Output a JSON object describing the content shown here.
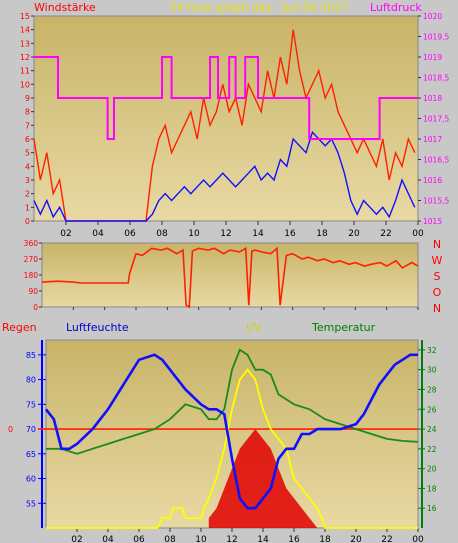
{
  "header": {
    "left_label": "Windstärke",
    "title": "24 hour graph day : Juli 04 2017",
    "right_label": "Luftdruck"
  },
  "colors": {
    "background": "#c8c8c8",
    "plot_top": "#c4b060",
    "plot_bottom": "#e8d8a0",
    "wind_gust": "#ff2000",
    "wind_avg": "#1010ff",
    "pressure": "#ff00ff",
    "direction": "#ff2000",
    "humidity": "#1010ff",
    "temperature": "#1a8a1a",
    "uv": "#ffff00",
    "rain_line": "#ff2000",
    "solar_fill": "#e00000",
    "left_label": "#ff0000",
    "humidity_label": "#0000cc",
    "uv_label": "#d4d400",
    "temp_label": "#008000",
    "pressure_label": "#ff00ff"
  },
  "chart_data": [
    {
      "type": "line",
      "name": "wind-pressure",
      "x_ticks": [
        "02",
        "04",
        "06",
        "08",
        "10",
        "12",
        "14",
        "16",
        "18",
        "20",
        "22",
        "00"
      ],
      "xlim": [
        0,
        24
      ],
      "y_left_ticks": [
        "0",
        "1",
        "2",
        "3",
        "4",
        "5",
        "6",
        "7",
        "8",
        "9",
        "10",
        "11",
        "12",
        "13",
        "14",
        "15"
      ],
      "ylim_left": [
        0,
        15
      ],
      "y_right_ticks": [
        "1015",
        "1015,5",
        "1016",
        "1016,5",
        "1017",
        "1017,5",
        "1018",
        "1018,5",
        "1019",
        "1019,5",
        "1020"
      ],
      "ylim_right": [
        1015,
        1020
      ],
      "series": [
        {
          "name": "Windstärke",
          "axis": "left",
          "style": "gust",
          "x": [
            0,
            0.4,
            0.8,
            1.2,
            1.6,
            2,
            7,
            7.4,
            7.8,
            8.2,
            8.6,
            9,
            9.4,
            9.8,
            10.2,
            10.6,
            11,
            11.4,
            11.8,
            12.2,
            12.6,
            13,
            13.4,
            13.8,
            14.2,
            14.6,
            15,
            15.4,
            15.8,
            16.2,
            16.6,
            17,
            17.4,
            17.8,
            18.2,
            18.6,
            19,
            19.4,
            19.8,
            20.2,
            20.6,
            21,
            21.4,
            21.8,
            22.2,
            22.6,
            23,
            23.4,
            23.8
          ],
          "values": [
            6,
            3,
            5,
            2,
            3,
            0,
            0,
            4,
            6,
            7,
            5,
            6,
            7,
            8,
            6,
            9,
            7,
            8,
            10,
            8,
            9,
            7,
            10,
            9,
            8,
            11,
            9,
            12,
            10,
            14,
            11,
            9,
            10,
            11,
            9,
            10,
            8,
            7,
            6,
            5,
            6,
            5,
            4,
            6,
            3,
            5,
            4,
            6,
            5
          ]
        },
        {
          "name": "",
          "axis": "left",
          "style": "avg",
          "x": [
            0,
            0.4,
            0.8,
            1.2,
            1.6,
            2,
            7,
            7.4,
            7.8,
            8.2,
            8.6,
            9,
            9.4,
            9.8,
            10.2,
            10.6,
            11,
            11.4,
            11.8,
            12.2,
            12.6,
            13,
            13.4,
            13.8,
            14.2,
            14.6,
            15,
            15.4,
            15.8,
            16.2,
            16.6,
            17,
            17.4,
            17.8,
            18.2,
            18.6,
            19,
            19.4,
            19.8,
            20.2,
            20.6,
            21,
            21.4,
            21.8,
            22.2,
            22.6,
            23,
            23.4,
            23.8
          ],
          "values": [
            1.5,
            0.5,
            1.5,
            0.3,
            1,
            0,
            0,
            0.5,
            1.5,
            2,
            1.5,
            2,
            2.5,
            2,
            2.5,
            3,
            2.5,
            3,
            3.5,
            3,
            2.5,
            3,
            3.5,
            4,
            3,
            3.5,
            3,
            4.5,
            4,
            6,
            5.5,
            5,
            6.5,
            6,
            5.5,
            6,
            5,
            3.5,
            1.5,
            0.5,
            1.5,
            1,
            0.5,
            1,
            0.3,
            1.5,
            3,
            2,
            1
          ]
        },
        {
          "name": "Luftdruck",
          "axis": "right",
          "style": "pressure",
          "x": [
            0,
            1.5,
            1.5,
            4.6,
            4.6,
            5,
            5,
            8,
            8,
            8.6,
            8.6,
            11,
            11,
            11.5,
            11.5,
            12.2,
            12.2,
            12.6,
            12.6,
            13.2,
            13.2,
            14,
            14,
            17.2,
            17.2,
            21.6,
            21.6,
            24
          ],
          "values": [
            1019,
            1019,
            1018,
            1018,
            1017,
            1017,
            1018,
            1018,
            1019,
            1019,
            1018,
            1018,
            1019,
            1019,
            1018,
            1018,
            1019,
            1019,
            1018,
            1018,
            1019,
            1019,
            1018,
            1018,
            1017,
            1017,
            1018,
            1018
          ]
        }
      ]
    },
    {
      "type": "line",
      "name": "wind-direction",
      "x_ticks": [
        "02",
        "04",
        "06",
        "08",
        "10",
        "12",
        "14",
        "16",
        "18",
        "20",
        "22",
        "00"
      ],
      "xlim": [
        0,
        24
      ],
      "y_left_ticks": [
        "0",
        "90",
        "180",
        "270",
        "360"
      ],
      "ylim_left": [
        0,
        360
      ],
      "direction_labels": [
        "N",
        "W",
        "S",
        "O",
        "N"
      ],
      "series": [
        {
          "name": "",
          "x": [
            0,
            1,
            2,
            2.5,
            5.5,
            5.6,
            6,
            6.4,
            7,
            7.6,
            8,
            8.6,
            9,
            9.2,
            9.4,
            9.6,
            10,
            10.6,
            11,
            11.6,
            12,
            12.6,
            13,
            13.2,
            13.4,
            13.6,
            14,
            14.6,
            15,
            15.2,
            15.6,
            16,
            16.6,
            17,
            17.6,
            18,
            18.6,
            19,
            19.6,
            20,
            20.6,
            21,
            21.6,
            22,
            22.6,
            23,
            23.6,
            24
          ],
          "values": [
            140,
            145,
            140,
            135,
            135,
            190,
            300,
            290,
            330,
            320,
            330,
            300,
            320,
            10,
            0,
            315,
            330,
            320,
            330,
            300,
            320,
            310,
            330,
            10,
            315,
            320,
            310,
            300,
            330,
            10,
            290,
            300,
            270,
            280,
            260,
            270,
            250,
            260,
            240,
            250,
            230,
            240,
            250,
            230,
            260,
            220,
            250,
            230
          ]
        }
      ]
    },
    {
      "type": "line",
      "name": "weather",
      "header": {
        "rain_label": "Regen",
        "humidity_label": "Luftfeuchte",
        "uv_label": "UV",
        "temp_label": "Temperatur"
      },
      "x_ticks": [
        "02",
        "04",
        "06",
        "08",
        "10",
        "12",
        "14",
        "16",
        "18",
        "20",
        "22",
        "00"
      ],
      "xlim": [
        0,
        24
      ],
      "rain_ticks": [
        "0"
      ],
      "humidity_ticks": [
        "55",
        "60",
        "65",
        "70",
        "75",
        "80",
        "85"
      ],
      "ylim_humidity": [
        50,
        88
      ],
      "temp_ticks": [
        "16",
        "18",
        "20",
        "22",
        "24",
        "26",
        "28",
        "30",
        "32"
      ],
      "ylim_temp": [
        14,
        33
      ],
      "series": [
        {
          "name": "Luftfeuchte",
          "axis": "humidity",
          "x": [
            0,
            0.5,
            1,
            1.5,
            2,
            3,
            4,
            5,
            6,
            7,
            7.5,
            8,
            9,
            10,
            10.5,
            11,
            11.5,
            12,
            12.5,
            13,
            13.5,
            14,
            14.5,
            15,
            15.5,
            16,
            16.5,
            17,
            17.5,
            18,
            19,
            20,
            20.5,
            21,
            21.5,
            22,
            22.5,
            23,
            23.5,
            24
          ],
          "values": [
            74,
            72,
            66,
            66,
            67,
            70,
            74,
            79,
            84,
            85,
            84,
            82,
            78,
            75,
            74,
            74,
            73,
            64,
            56,
            54,
            54,
            56,
            58,
            64,
            66,
            66,
            69,
            69,
            70,
            70,
            70,
            71,
            73,
            76,
            79,
            81,
            83,
            84,
            85,
            85
          ]
        },
        {
          "name": "Temperatur",
          "axis": "temp",
          "x": [
            0,
            1,
            2,
            3,
            4,
            5,
            6,
            7,
            8,
            9,
            10,
            10.5,
            11,
            11.5,
            12,
            12.5,
            13,
            13.5,
            14,
            14.5,
            15,
            15.5,
            16,
            17,
            18,
            19,
            20,
            21,
            22,
            23,
            24
          ],
          "values": [
            22,
            22,
            21.5,
            22,
            22.5,
            23,
            23.5,
            24,
            25,
            26.5,
            26,
            25,
            25,
            26,
            30,
            32,
            31.5,
            30,
            30,
            29.5,
            27.5,
            27,
            26.5,
            26,
            25,
            24.5,
            24,
            23.5,
            23,
            22.8,
            22.7
          ]
        },
        {
          "name": "UV",
          "axis": "temp",
          "x": [
            0,
            7.2,
            7.5,
            8,
            8.2,
            8.8,
            9,
            10,
            10.2,
            10.5,
            11,
            11.5,
            12,
            12.5,
            13,
            13.5,
            14,
            14.5,
            15,
            15.5,
            16,
            16.5,
            17,
            17.5,
            17.8,
            18,
            24
          ],
          "values": [
            14,
            14,
            15,
            15,
            16,
            16,
            15,
            15,
            16,
            17,
            19,
            22,
            26,
            29,
            30,
            29,
            26,
            24,
            23,
            22,
            19,
            18,
            17,
            16,
            15,
            14,
            14
          ]
        },
        {
          "name": "",
          "axis": "temp",
          "style": "solar",
          "x": [
            10.5,
            11,
            11.5,
            12,
            12.5,
            13,
            13.5,
            14,
            14.5,
            15,
            15.5,
            16,
            16.5,
            17,
            17.5
          ],
          "values": [
            15,
            16,
            18,
            20,
            22,
            23,
            24,
            23,
            22,
            20,
            18,
            17,
            16,
            15,
            14
          ]
        },
        {
          "name": "Regen",
          "axis": "humidity",
          "style": "rain",
          "x": [
            0,
            24
          ],
          "values": [
            70,
            70
          ]
        }
      ]
    }
  ]
}
